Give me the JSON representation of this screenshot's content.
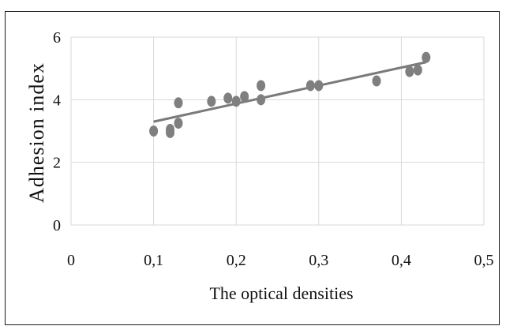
{
  "chart_data": {
    "type": "scatter",
    "title": "",
    "xlabel": "The optical densities",
    "ylabel": "Adhesion index",
    "xlim": [
      0,
      0.5
    ],
    "ylim": [
      0,
      6
    ],
    "x_ticks": [
      "0",
      "0,1",
      "0,2",
      "0,3",
      "0,4",
      "0,5"
    ],
    "y_ticks": [
      "0",
      "2",
      "4",
      "6"
    ],
    "grid": "both",
    "legend": "none",
    "points": [
      {
        "x": 0.1,
        "y": 3.0
      },
      {
        "x": 0.12,
        "y": 2.95
      },
      {
        "x": 0.12,
        "y": 3.05
      },
      {
        "x": 0.13,
        "y": 3.25
      },
      {
        "x": 0.13,
        "y": 3.9
      },
      {
        "x": 0.17,
        "y": 3.95
      },
      {
        "x": 0.19,
        "y": 4.05
      },
      {
        "x": 0.2,
        "y": 3.95
      },
      {
        "x": 0.21,
        "y": 4.1
      },
      {
        "x": 0.23,
        "y": 4.0
      },
      {
        "x": 0.23,
        "y": 4.45
      },
      {
        "x": 0.29,
        "y": 4.45
      },
      {
        "x": 0.3,
        "y": 4.45
      },
      {
        "x": 0.37,
        "y": 4.6
      },
      {
        "x": 0.41,
        "y": 4.9
      },
      {
        "x": 0.42,
        "y": 4.95
      },
      {
        "x": 0.43,
        "y": 5.35
      }
    ],
    "trendline": {
      "x": [
        0.1,
        0.43
      ],
      "y": [
        3.3,
        5.2
      ]
    },
    "colors": {
      "marker": "#7f7f7f",
      "trendline": "#7a7a7a",
      "grid": "#d9d9d9",
      "text": "#111111"
    }
  }
}
